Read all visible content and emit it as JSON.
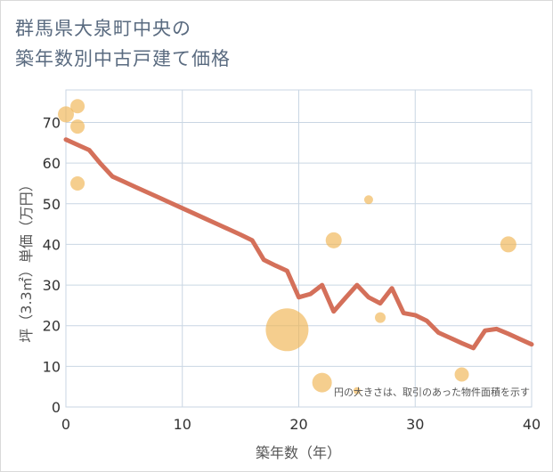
{
  "title_lines": [
    "群馬県大泉町中央の",
    "築年数別中古戸建て価格"
  ],
  "chart_data": {
    "type": "line+bubble",
    "xlabel": "築年数（年）",
    "ylabel": "坪（3.3㎡）単価（万円）",
    "xlim": [
      0,
      40
    ],
    "ylim": [
      0,
      78
    ],
    "xticks": [
      0,
      10,
      20,
      30,
      40
    ],
    "yticks": [
      0,
      10,
      20,
      30,
      40,
      50,
      60,
      70
    ],
    "note": "円の大きさは、取引のあった物件面積を示す",
    "colors": {
      "line": "#d4705a",
      "bubble": "#f0b352",
      "grid": "#c9d6e3"
    },
    "line": {
      "x": [
        0,
        1,
        2,
        3,
        4,
        5,
        6,
        7,
        8,
        9,
        10,
        11,
        12,
        13,
        14,
        15,
        16,
        17,
        18,
        19,
        20,
        21,
        22,
        23,
        24,
        25,
        26,
        27,
        28,
        29,
        30,
        31,
        32,
        33,
        34,
        35,
        36,
        37,
        38,
        39,
        40
      ],
      "y": [
        65.8,
        64.5,
        63.2,
        59.8,
        56.7,
        55.4,
        54.1,
        52.8,
        51.5,
        50.2,
        48.9,
        47.6,
        46.3,
        45,
        43.7,
        42.4,
        41,
        36.2,
        34.8,
        33.5,
        27,
        27.8,
        30,
        23.5,
        26.8,
        30,
        27,
        25.5,
        29.2,
        23.1,
        22.6,
        21.2,
        18.3,
        17,
        15.7,
        14.5,
        18.8,
        19.2,
        18,
        16.7,
        15.4
      ]
    },
    "bubbles": [
      {
        "x": 0,
        "y": 72,
        "size": 9
      },
      {
        "x": 1,
        "y": 74,
        "size": 8
      },
      {
        "x": 1,
        "y": 69,
        "size": 8
      },
      {
        "x": 1,
        "y": 55,
        "size": 8
      },
      {
        "x": 19,
        "y": 19,
        "size": 24
      },
      {
        "x": 22,
        "y": 6,
        "size": 11
      },
      {
        "x": 23,
        "y": 41,
        "size": 9
      },
      {
        "x": 25,
        "y": 4,
        "size": 4
      },
      {
        "x": 26,
        "y": 51,
        "size": 5
      },
      {
        "x": 27,
        "y": 22,
        "size": 6
      },
      {
        "x": 34,
        "y": 8,
        "size": 8
      },
      {
        "x": 38,
        "y": 40,
        "size": 9
      }
    ]
  }
}
